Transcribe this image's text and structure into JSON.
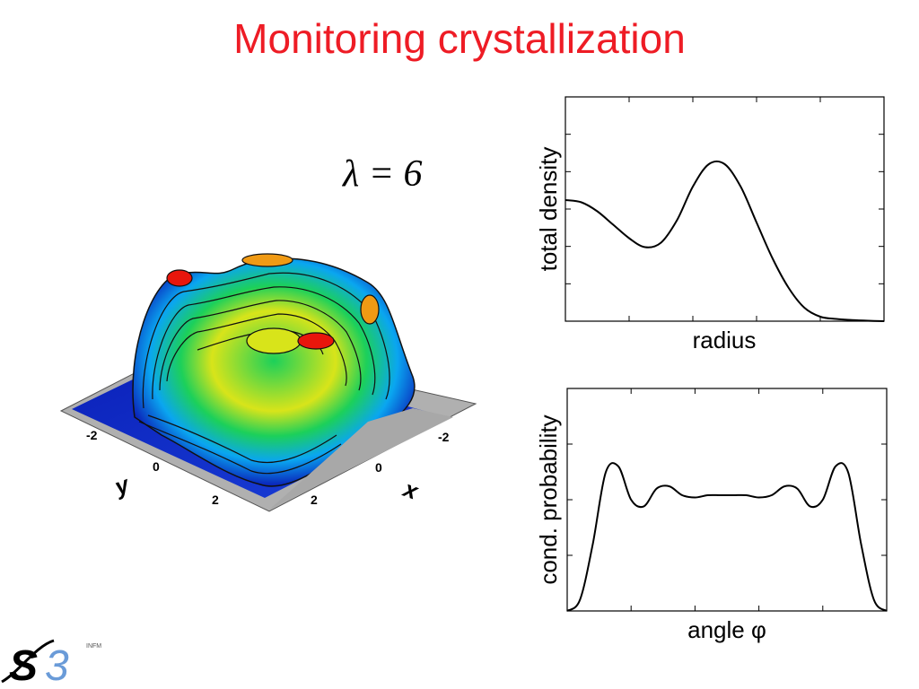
{
  "slide": {
    "title": "Monitoring crystallization",
    "parameter_label": "λ = 6"
  },
  "surface_plot": {
    "type": "surface",
    "y_axis_label": "y",
    "x_axis_label": "x",
    "y_ticks": [
      "-2",
      "0",
      "2"
    ],
    "x_ticks": [
      "-2",
      "0",
      "2"
    ],
    "colormap": [
      "#0a1fb8",
      "#0aa6f0",
      "#1cd05a",
      "#d8e41a",
      "#f09a14",
      "#e8160c"
    ]
  },
  "chart_data": [
    {
      "type": "line",
      "xlabel": "radius",
      "ylabel": "total density",
      "x": [
        0,
        0.05,
        0.1,
        0.15,
        0.2,
        0.25,
        0.3,
        0.35,
        0.4,
        0.45,
        0.5,
        0.55,
        0.6,
        0.65,
        0.7,
        0.75,
        0.8,
        0.85,
        0.9,
        0.95,
        1.0
      ],
      "y": [
        0.54,
        0.53,
        0.49,
        0.43,
        0.37,
        0.33,
        0.35,
        0.45,
        0.6,
        0.7,
        0.7,
        0.6,
        0.44,
        0.28,
        0.15,
        0.06,
        0.02,
        0.01,
        0.005,
        0.002,
        0.0
      ],
      "xlim": [
        0,
        1
      ],
      "ylim": [
        0,
        1
      ],
      "x_tick_count": 5,
      "y_tick_count": 6,
      "grid": false
    },
    {
      "type": "line",
      "xlabel": "angle φ",
      "ylabel": "cond. probability",
      "x": [
        0,
        0.04,
        0.08,
        0.12,
        0.16,
        0.2,
        0.24,
        0.28,
        0.32,
        0.36,
        0.4,
        0.44,
        0.48,
        0.52,
        0.56,
        0.6,
        0.64,
        0.68,
        0.72,
        0.76,
        0.8,
        0.84,
        0.88,
        0.92,
        0.96,
        1.0
      ],
      "y": [
        0.0,
        0.05,
        0.3,
        0.62,
        0.65,
        0.5,
        0.47,
        0.55,
        0.56,
        0.52,
        0.51,
        0.52,
        0.52,
        0.52,
        0.52,
        0.51,
        0.52,
        0.56,
        0.55,
        0.47,
        0.5,
        0.65,
        0.62,
        0.3,
        0.05,
        0.0
      ],
      "xlim": [
        0,
        1
      ],
      "ylim": [
        0,
        1
      ],
      "x_tick_count": 5,
      "y_tick_count": 4,
      "grid": false
    }
  ],
  "logo": {
    "main": "S3",
    "sub": "INFM"
  }
}
